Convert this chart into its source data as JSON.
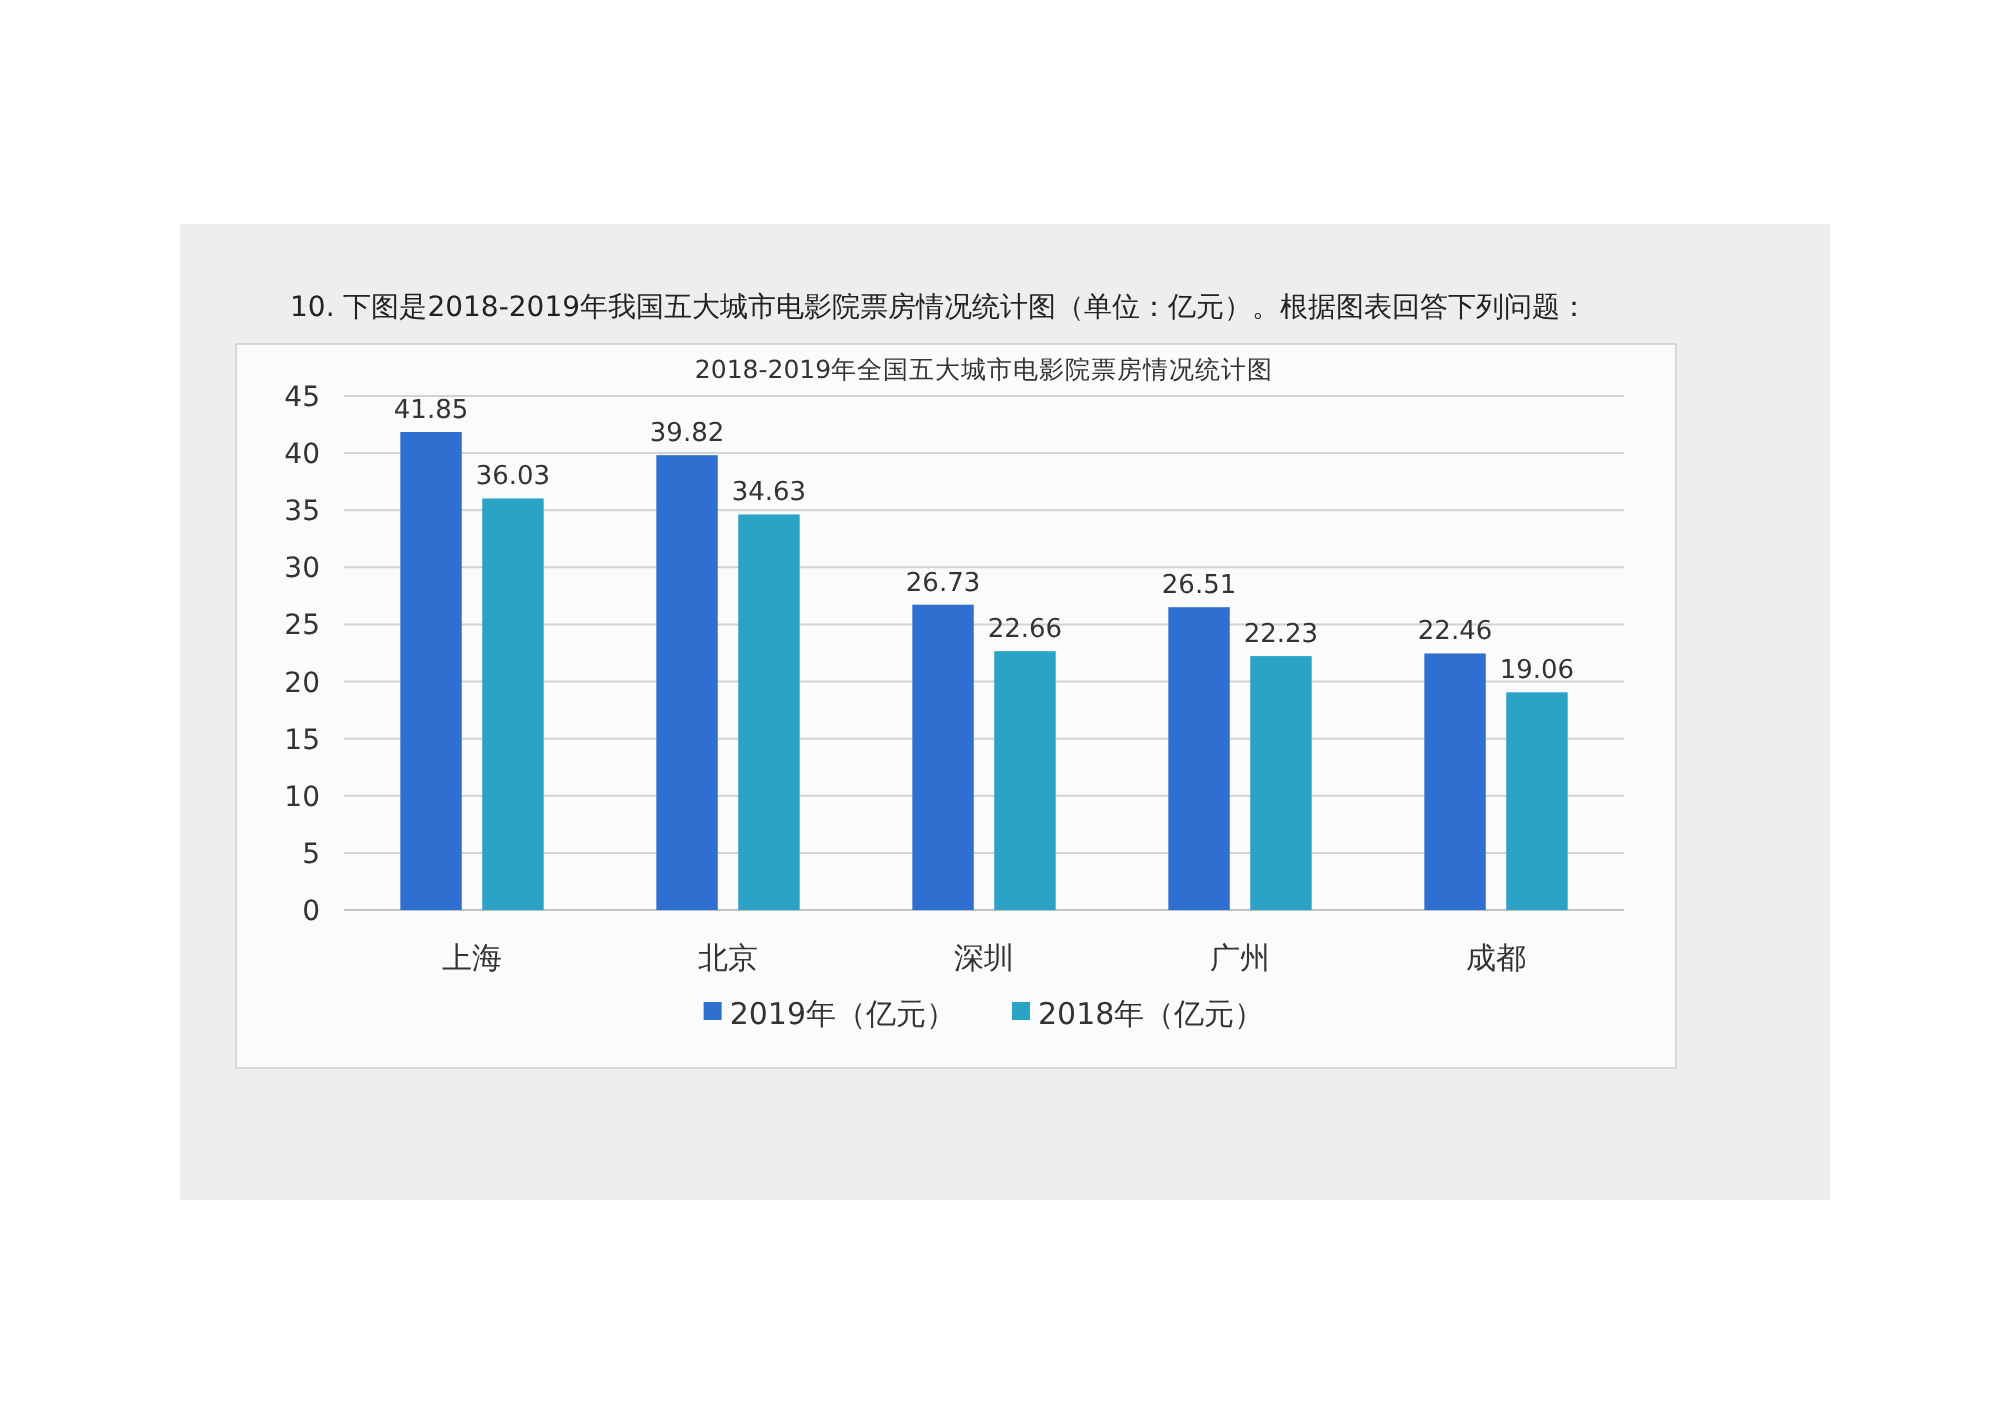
{
  "chart_data": {
    "type": "bar",
    "title": "2018-2019年全国五大城市电影院票房情况统计图",
    "annotations": [
      "10. 下图是2018-2019年我国五大城市电影院票房情况统计图（单位：亿元）。根据图表回答下列问题："
    ],
    "categories": [
      "上海",
      "北京",
      "深圳",
      "广州",
      "成都"
    ],
    "series": [
      {
        "name": "2019年（亿元）",
        "color": "#2f6fcf",
        "values": [
          41.85,
          39.82,
          26.73,
          26.51,
          22.46
        ]
      },
      {
        "name": "2018年（亿元）",
        "color": "#2aa3c6",
        "values": [
          36.03,
          34.63,
          22.66,
          22.23,
          19.06
        ]
      }
    ],
    "ylim": [
      0,
      45
    ],
    "yticks": [
      0,
      5,
      10,
      15,
      20,
      25,
      30,
      35,
      40,
      45
    ],
    "grid": "y",
    "legend": "bottom",
    "data_labels": true
  }
}
